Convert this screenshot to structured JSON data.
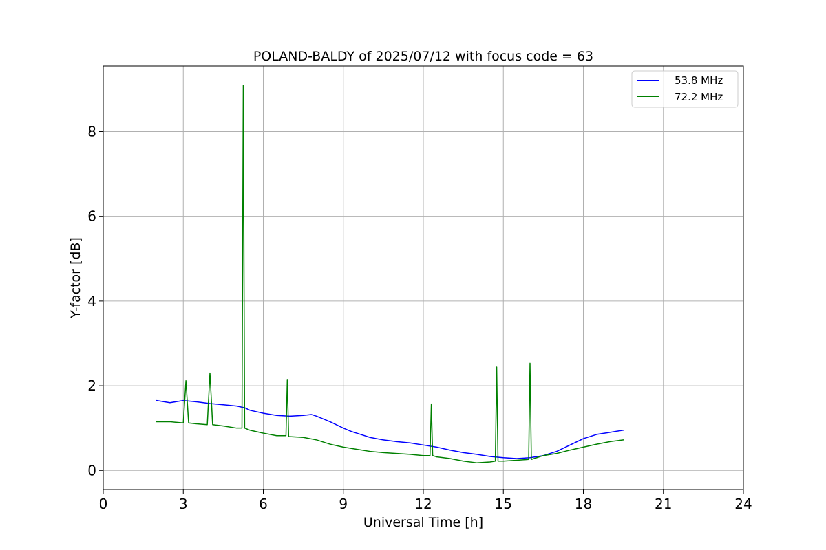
{
  "chart_data": {
    "type": "line",
    "title": "POLAND-BALDY of 2025/07/12 with focus code = 63",
    "xlabel": "Universal Time [h]",
    "ylabel": "Y-factor [dB]",
    "xlim": [
      0,
      24
    ],
    "ylim": [
      -0.45,
      9.55
    ],
    "xticks": [
      0,
      3,
      6,
      9,
      12,
      15,
      18,
      21,
      24
    ],
    "yticks": [
      0,
      2,
      4,
      6,
      8
    ],
    "grid": true,
    "legend_position": "top-right",
    "series": [
      {
        "name": "53.8 MHz",
        "color": "#0000ff",
        "x": [
          2.0,
          2.5,
          3.0,
          3.5,
          4.0,
          4.5,
          5.0,
          5.3,
          5.5,
          6.0,
          6.5,
          7.0,
          7.5,
          7.8,
          8.0,
          8.5,
          9.0,
          9.3,
          9.5,
          10.0,
          10.5,
          11.0,
          11.5,
          12.0,
          12.5,
          13.0,
          13.5,
          14.0,
          14.5,
          15.0,
          15.5,
          16.0,
          16.5,
          17.0,
          17.5,
          18.0,
          18.5,
          19.0,
          19.5
        ],
        "y": [
          1.65,
          1.6,
          1.65,
          1.62,
          1.58,
          1.55,
          1.52,
          1.48,
          1.42,
          1.35,
          1.3,
          1.28,
          1.3,
          1.32,
          1.28,
          1.15,
          1.0,
          0.92,
          0.88,
          0.78,
          0.72,
          0.68,
          0.65,
          0.6,
          0.55,
          0.48,
          0.42,
          0.38,
          0.33,
          0.3,
          0.28,
          0.3,
          0.35,
          0.45,
          0.6,
          0.75,
          0.85,
          0.9,
          0.95
        ]
      },
      {
        "name": "72.2 MHz",
        "color": "#008000",
        "x": [
          2.0,
          2.5,
          3.0,
          3.1,
          3.2,
          3.5,
          3.9,
          4.0,
          4.1,
          4.5,
          5.0,
          5.2,
          5.25,
          5.3,
          5.5,
          6.0,
          6.5,
          6.85,
          6.9,
          6.95,
          7.5,
          8.0,
          8.5,
          9.0,
          9.5,
          10.0,
          10.5,
          11.0,
          11.5,
          12.0,
          12.25,
          12.3,
          12.35,
          12.5,
          13.0,
          13.5,
          14.0,
          14.5,
          14.7,
          14.75,
          14.8,
          15.0,
          15.5,
          15.95,
          16.0,
          16.05,
          16.5,
          17.0,
          17.5,
          18.0,
          18.5,
          19.0,
          19.5
        ],
        "y": [
          1.15,
          1.15,
          1.12,
          2.12,
          1.12,
          1.1,
          1.08,
          2.3,
          1.08,
          1.05,
          1.0,
          1.0,
          9.1,
          1.0,
          0.95,
          0.88,
          0.82,
          0.82,
          2.15,
          0.8,
          0.78,
          0.72,
          0.62,
          0.55,
          0.5,
          0.45,
          0.42,
          0.4,
          0.38,
          0.35,
          0.35,
          1.57,
          0.35,
          0.32,
          0.28,
          0.22,
          0.18,
          0.2,
          0.22,
          2.44,
          0.22,
          0.22,
          0.24,
          0.26,
          2.53,
          0.26,
          0.35,
          0.4,
          0.48,
          0.55,
          0.62,
          0.68,
          0.72
        ]
      }
    ]
  }
}
